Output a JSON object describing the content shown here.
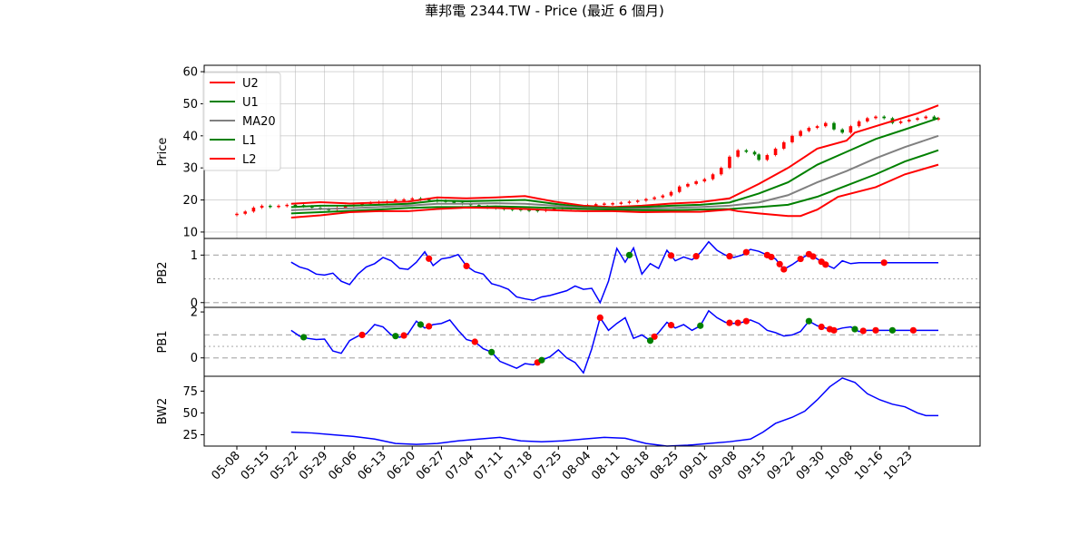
{
  "title": "華邦電 2344.TW - Price (最近 6 個月)",
  "colors": {
    "U2": "#ff0000",
    "U1": "#008000",
    "MA20": "#808080",
    "L1": "#008000",
    "L2": "#ff0000",
    "up_candle": "#ff0000",
    "down_candle": "#008000",
    "pb_line": "#0000ff",
    "bw_line": "#0000ff",
    "marker_high": "#ff0000",
    "marker_low": "#008000",
    "grid": "#b0b0b0",
    "ref_line": "#b0b0b0"
  },
  "chart_data": [
    {
      "panel": "price",
      "type": "line",
      "ylabel": "Price",
      "ylim": [
        8,
        62
      ],
      "yticks": [
        10,
        20,
        30,
        40,
        50,
        60
      ],
      "grid": true,
      "legend_position": "top-left",
      "x_ticks": [
        "05-08",
        "05-15",
        "05-22",
        "05-29",
        "06-06",
        "06-13",
        "06-20",
        "06-27",
        "07-04",
        "07-11",
        "07-18",
        "07-25",
        "08-04",
        "08-11",
        "08-18",
        "08-25",
        "09-01",
        "09-08",
        "09-15",
        "09-22",
        "09-30",
        "10-08",
        "10-16",
        "10-23"
      ],
      "x_range_days": [
        0,
        168
      ],
      "series": [
        {
          "name": "U2",
          "x": [
            13,
            20,
            27,
            34,
            41,
            48,
            55,
            62,
            69,
            76,
            83,
            90,
            97,
            104,
            111,
            118,
            125,
            132,
            139,
            146,
            148,
            153,
            158,
            163,
            168
          ],
          "values": [
            18.8,
            19.3,
            18.9,
            19.2,
            19.5,
            20.8,
            20.5,
            20.8,
            21.2,
            19.5,
            18.2,
            17.8,
            18.2,
            18.9,
            19.3,
            20.5,
            25,
            30,
            36,
            38.5,
            41,
            43,
            45,
            47,
            49.5
          ]
        },
        {
          "name": "U1",
          "x": [
            13,
            20,
            27,
            34,
            41,
            48,
            55,
            62,
            69,
            76,
            83,
            90,
            97,
            104,
            111,
            118,
            125,
            132,
            139,
            146,
            153,
            160,
            168
          ],
          "values": [
            17.8,
            18.2,
            18.2,
            18.5,
            18.8,
            19.8,
            19.6,
            19.8,
            20,
            18.8,
            17.8,
            17.5,
            17.8,
            18.2,
            18.5,
            19.2,
            22,
            25.5,
            31,
            35,
            39,
            42,
            45.5
          ]
        },
        {
          "name": "MA20",
          "x": [
            13,
            20,
            27,
            34,
            41,
            48,
            55,
            62,
            69,
            76,
            83,
            90,
            97,
            104,
            111,
            118,
            125,
            132,
            139,
            146,
            153,
            160,
            168
          ],
          "values": [
            16.8,
            17.2,
            17.4,
            17.8,
            18.2,
            18.8,
            18.8,
            19,
            18.8,
            18.2,
            17.5,
            17.2,
            17.3,
            17.5,
            17.8,
            18.2,
            19.2,
            21.5,
            25.5,
            29,
            33,
            36.5,
            40
          ]
        },
        {
          "name": "L1",
          "x": [
            13,
            20,
            27,
            34,
            41,
            48,
            55,
            62,
            69,
            76,
            83,
            90,
            97,
            104,
            111,
            118,
            125,
            132,
            139,
            146,
            153,
            160,
            168
          ],
          "values": [
            15.8,
            16.2,
            16.6,
            17,
            17.5,
            17.8,
            17.8,
            18,
            17.8,
            17.5,
            17.2,
            17,
            16.8,
            16.8,
            17,
            17.2,
            17.8,
            18.5,
            21,
            24.5,
            28,
            32,
            35.5
          ]
        },
        {
          "name": "L2",
          "x": [
            13,
            20,
            27,
            34,
            41,
            48,
            55,
            62,
            69,
            76,
            83,
            90,
            97,
            104,
            111,
            118,
            120,
            125,
            132,
            135,
            139,
            144,
            153,
            160,
            168
          ],
          "values": [
            14.5,
            15.2,
            16.2,
            16.5,
            16.5,
            17.2,
            17.6,
            17.5,
            17.2,
            16.8,
            16.5,
            16.5,
            16.2,
            16.3,
            16.3,
            17,
            16.5,
            15.8,
            15,
            15,
            17,
            21,
            24,
            28,
            31
          ]
        }
      ],
      "candles": {
        "x": [
          0,
          2,
          4,
          6,
          8,
          10,
          12,
          14,
          16,
          18,
          20,
          22,
          24,
          26,
          28,
          30,
          32,
          34,
          36,
          38,
          40,
          42,
          44,
          46,
          48,
          50,
          52,
          54,
          56,
          58,
          60,
          62,
          64,
          66,
          68,
          70,
          72,
          74,
          76,
          78,
          80,
          82,
          84,
          86,
          88,
          90,
          92,
          94,
          96,
          98,
          100,
          102,
          104,
          106,
          108,
          110,
          112,
          114,
          116,
          118,
          120,
          122,
          124,
          125,
          127,
          129,
          131,
          133,
          135,
          137,
          139,
          141,
          143,
          145,
          147,
          149,
          151,
          153,
          155,
          157,
          159,
          161,
          163,
          165,
          167,
          168
        ],
        "values": [
          15.7,
          16.4,
          17.6,
          18.2,
          18.0,
          18.2,
          18.5,
          18.4,
          18.0,
          17.6,
          17.2,
          17.0,
          17.6,
          18.1,
          18.5,
          18.8,
          19.2,
          19.4,
          19.6,
          20.0,
          20.2,
          20.5,
          20.3,
          20.0,
          19.8,
          19.5,
          19.2,
          18.8,
          18.4,
          18.0,
          17.8,
          17.5,
          17.3,
          17.2,
          17.0,
          16.9,
          16.6,
          17.0,
          17.4,
          17.6,
          17.8,
          18.0,
          18.4,
          18.7,
          18.9,
          19.0,
          19.2,
          19.5,
          19.8,
          20.3,
          20.8,
          21.4,
          22.5,
          24.2,
          25.0,
          25.8,
          26.5,
          28.0,
          30.0,
          33.5,
          35.5,
          35.0,
          34.2,
          32.5,
          34.0,
          36.0,
          38.0,
          40.0,
          41.5,
          42.5,
          43.0,
          44.0,
          42.0,
          41.0,
          43.0,
          44.5,
          45.5,
          46.0,
          45.5,
          44.0,
          44.5,
          45.0,
          45.5,
          46.0,
          45.2,
          45.5
        ]
      }
    },
    {
      "panel": "pb2",
      "type": "line",
      "ylabel": "PB2",
      "ylim": [
        -0.1,
        1.35
      ],
      "yticks": [
        0,
        1
      ],
      "ref_lines": [
        0,
        0.5,
        1
      ],
      "x": [
        13,
        15,
        17,
        19,
        21,
        23,
        25,
        27,
        29,
        31,
        33,
        35,
        37,
        39,
        41,
        43,
        45,
        47,
        49,
        51,
        53,
        55,
        57,
        59,
        61,
        63,
        65,
        67,
        69,
        71,
        73,
        75,
        77,
        79,
        81,
        83,
        85,
        87,
        89,
        91,
        93,
        95,
        97,
        99,
        101,
        103,
        105,
        107,
        109,
        111,
        113,
        115,
        117,
        119,
        121,
        123,
        125,
        127,
        129,
        131,
        133,
        135,
        137,
        139,
        141,
        143,
        145,
        147,
        149,
        151,
        153,
        155,
        157,
        159,
        161,
        163,
        165,
        168
      ],
      "values": [
        0.85,
        0.75,
        0.7,
        0.6,
        0.58,
        0.62,
        0.45,
        0.38,
        0.6,
        0.75,
        0.82,
        0.95,
        0.88,
        0.72,
        0.7,
        0.85,
        1.07,
        0.78,
        0.92,
        0.95,
        1.01,
        0.77,
        0.65,
        0.6,
        0.4,
        0.35,
        0.28,
        0.12,
        0.08,
        0.05,
        0.12,
        0.15,
        0.2,
        0.25,
        0.35,
        0.28,
        0.3,
        0.0,
        0.45,
        1.14,
        0.85,
        1.15,
        0.6,
        0.82,
        0.72,
        1.1,
        0.88,
        0.96,
        0.9,
        1.05,
        1.28,
        1.1,
        1.0,
        0.95,
        1.0,
        1.12,
        1.08,
        1.0,
        0.92,
        0.7,
        0.8,
        0.92,
        1.02,
        0.92,
        0.8,
        0.72,
        0.88,
        0.82,
        0.84,
        0.84,
        0.84,
        0.84,
        0.84,
        0.84,
        0.84,
        0.84,
        0.84,
        0.84
      ],
      "markers_high_x": [
        46,
        55,
        104,
        110,
        118,
        122,
        127,
        128,
        130,
        131,
        135,
        137,
        138,
        140,
        141,
        155
      ],
      "markers_low_x": [
        94
      ]
    },
    {
      "panel": "pb1",
      "type": "line",
      "ylabel": "PB1",
      "ylim": [
        -0.8,
        2.2
      ],
      "yticks": [
        0,
        2
      ],
      "ref_lines": [
        0,
        0.5,
        1
      ],
      "x": [
        13,
        15,
        17,
        19,
        21,
        23,
        25,
        27,
        29,
        31,
        33,
        35,
        37,
        39,
        41,
        43,
        45,
        47,
        49,
        51,
        53,
        55,
        57,
        59,
        61,
        63,
        65,
        67,
        69,
        71,
        73,
        75,
        77,
        79,
        81,
        83,
        85,
        87,
        89,
        91,
        93,
        95,
        97,
        99,
        101,
        103,
        105,
        107,
        109,
        111,
        113,
        115,
        117,
        119,
        121,
        123,
        125,
        127,
        129,
        131,
        133,
        135,
        137,
        139,
        141,
        143,
        145,
        147,
        149,
        151,
        153,
        155,
        157,
        159,
        161,
        163,
        165,
        168
      ],
      "values": [
        1.2,
        0.95,
        0.85,
        0.8,
        0.82,
        0.3,
        0.2,
        0.75,
        0.95,
        1.05,
        1.45,
        1.35,
        1.0,
        0.9,
        1.05,
        1.6,
        1.3,
        1.45,
        1.5,
        1.65,
        1.2,
        0.8,
        0.7,
        0.4,
        0.25,
        -0.15,
        -0.3,
        -0.45,
        -0.25,
        -0.3,
        -0.1,
        0.05,
        0.35,
        0.0,
        -0.2,
        -0.65,
        0.4,
        1.75,
        1.2,
        1.5,
        1.75,
        0.85,
        1.0,
        0.75,
        1.1,
        1.55,
        1.3,
        1.45,
        1.2,
        1.4,
        2.05,
        1.75,
        1.55,
        1.5,
        1.55,
        1.65,
        1.5,
        1.2,
        1.1,
        0.95,
        1.0,
        1.15,
        1.6,
        1.4,
        1.3,
        1.2,
        1.3,
        1.35,
        1.15,
        1.2,
        1.2,
        1.2,
        1.2,
        1.2,
        1.2,
        1.2,
        1.2,
        1.2
      ],
      "markers_high_x": [
        30,
        40,
        46,
        57,
        72,
        87,
        100,
        104,
        118,
        120,
        122,
        140,
        142,
        143,
        150,
        153,
        162
      ],
      "markers_low_x": [
        16,
        38,
        44,
        61,
        73,
        99,
        111,
        137,
        148,
        157
      ]
    },
    {
      "panel": "bw2",
      "type": "line",
      "ylabel": "BW2",
      "ylim": [
        12,
        92
      ],
      "yticks": [
        25,
        50,
        75
      ],
      "x": [
        13,
        18,
        23,
        28,
        33,
        38,
        43,
        48,
        53,
        58,
        63,
        68,
        73,
        78,
        83,
        88,
        93,
        98,
        103,
        108,
        113,
        118,
        123,
        126,
        129,
        133,
        136,
        139,
        142,
        145,
        148,
        151,
        154,
        157,
        160,
        163,
        165,
        168
      ],
      "values": [
        28,
        27,
        25,
        23,
        20,
        15,
        14,
        15,
        18,
        20,
        22,
        18,
        17,
        18,
        20,
        22,
        21,
        15,
        12,
        13,
        15,
        17,
        20,
        28,
        38,
        45,
        52,
        65,
        80,
        90,
        85,
        72,
        65,
        60,
        57,
        50,
        47,
        47
      ]
    }
  ]
}
